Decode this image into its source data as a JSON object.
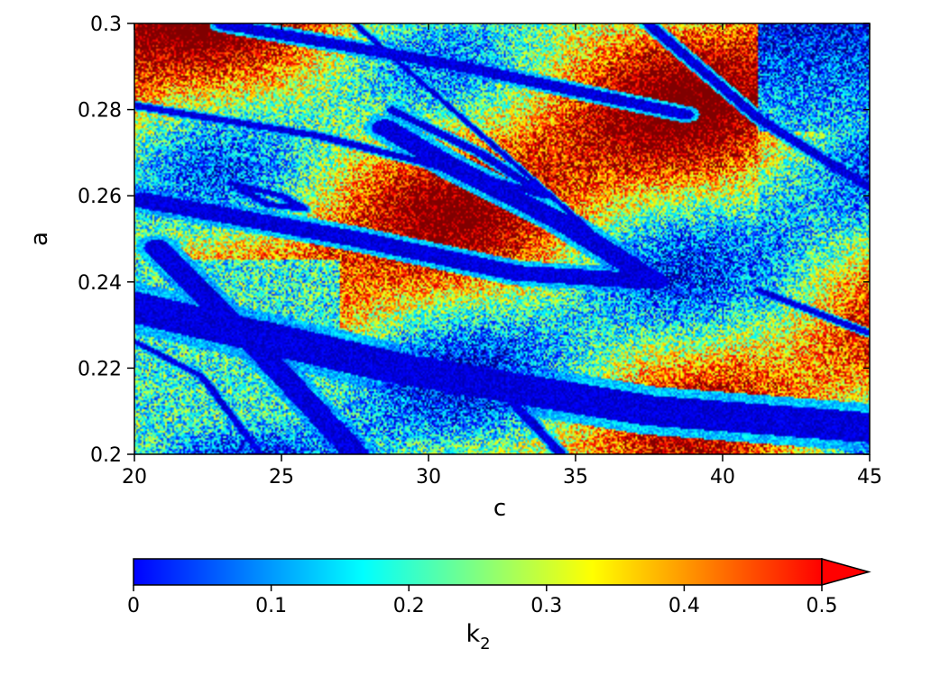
{
  "chart_data": {
    "type": "heatmap",
    "title": "",
    "xlabel": "c",
    "ylabel": "a",
    "xlim": [
      20,
      45
    ],
    "ylim": [
      0.2,
      0.3
    ],
    "xticks": [
      20,
      25,
      30,
      35,
      40,
      45
    ],
    "xtick_labels": [
      "20",
      "25",
      "30",
      "35",
      "40",
      "45"
    ],
    "yticks": [
      0.2,
      0.22,
      0.24,
      0.26,
      0.28,
      0.3
    ],
    "ytick_labels": [
      "0.2",
      "0.22",
      "0.24",
      "0.26",
      "0.28",
      "0.3"
    ],
    "grid": false,
    "colorbar": {
      "label_base": "k",
      "label_sub": "2",
      "range": [
        0,
        0.5
      ],
      "extend": "max",
      "ticks": [
        0,
        0.1,
        0.2,
        0.3,
        0.4,
        0.5
      ],
      "tick_labels": [
        "0",
        "0.1",
        "0.2",
        "0.3",
        "0.4",
        "0.5"
      ],
      "colormap": "jet",
      "colors": [
        "#0000ff",
        "#0080ff",
        "#00ffff",
        "#80ff80",
        "#ffff00",
        "#ff8000",
        "#ff0000"
      ]
    }
  }
}
